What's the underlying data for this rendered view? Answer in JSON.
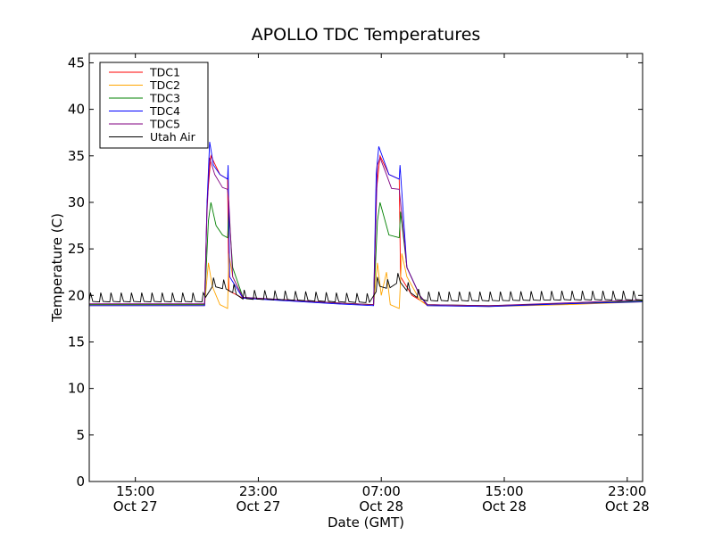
{
  "chart_data": {
    "type": "line",
    "title": "APOLLO TDC Temperatures",
    "xlabel": "Date (GMT)",
    "ylabel": "Temperature (C)",
    "ylim": [
      0,
      46
    ],
    "xlim": [
      "2012-10-27 12:00",
      "2012-10-29 00:00"
    ],
    "grid": false,
    "legend_position": "top-left",
    "x_ticks": [
      {
        "time": "Oct 27 15:00",
        "line1": "15:00",
        "line2": "Oct 27"
      },
      {
        "time": "Oct 27 23:00",
        "line1": "23:00",
        "line2": "Oct 27"
      },
      {
        "time": "Oct 28 07:00",
        "line1": "07:00",
        "line2": "Oct 28"
      },
      {
        "time": "Oct 28 15:00",
        "line1": "15:00",
        "line2": "Oct 28"
      },
      {
        "time": "Oct 28 23:00",
        "line1": "23:00",
        "line2": "Oct 28"
      }
    ],
    "y_ticks": [
      0,
      5,
      10,
      15,
      20,
      25,
      30,
      35,
      40,
      45
    ],
    "series": [
      {
        "name": "TDC1",
        "color": "#ff0000",
        "points": [
          [
            "Oct 27 12:00",
            19.0
          ],
          [
            "Oct 27 19:30",
            19.0
          ],
          [
            "Oct 27 19:40",
            30.0
          ],
          [
            "Oct 27 19:55",
            35.0
          ],
          [
            "Oct 27 20:30",
            33.0
          ],
          [
            "Oct 27 21:00",
            32.5
          ],
          [
            "Oct 27 21:05",
            20.5
          ],
          [
            "Oct 27 22:00",
            19.7
          ],
          [
            "Oct 28 01:00",
            19.5
          ],
          [
            "Oct 28 04:00",
            19.2
          ],
          [
            "Oct 28 06:30",
            19.0
          ],
          [
            "Oct 28 06:40",
            31.0
          ],
          [
            "Oct 28 06:55",
            35.0
          ],
          [
            "Oct 28 07:30",
            33.0
          ],
          [
            "Oct 28 08:10",
            32.5
          ],
          [
            "Oct 28 08:15",
            22.0
          ],
          [
            "Oct 28 09:00",
            20.0
          ],
          [
            "Oct 28 10:00",
            19.0
          ],
          [
            "Oct 28 14:00",
            18.9
          ],
          [
            "Oct 28 19:00",
            19.1
          ],
          [
            "Oct 29 00:00",
            19.4
          ]
        ]
      },
      {
        "name": "TDC2",
        "color": "#ffa500",
        "points": [
          [
            "Oct 27 12:00",
            18.9
          ],
          [
            "Oct 27 19:30",
            18.9
          ],
          [
            "Oct 27 19:45",
            23.5
          ],
          [
            "Oct 27 20:00",
            21.0
          ],
          [
            "Oct 27 20:30",
            19.0
          ],
          [
            "Oct 27 21:00",
            18.6
          ],
          [
            "Oct 27 21:05",
            24.5
          ],
          [
            "Oct 27 21:20",
            22.0
          ],
          [
            "Oct 27 22:00",
            19.7
          ],
          [
            "Oct 28 01:00",
            19.5
          ],
          [
            "Oct 28 04:00",
            19.2
          ],
          [
            "Oct 28 06:30",
            19.0
          ],
          [
            "Oct 28 06:45",
            23.5
          ],
          [
            "Oct 28 07:00",
            20.0
          ],
          [
            "Oct 28 07:20",
            22.5
          ],
          [
            "Oct 28 07:35",
            19.0
          ],
          [
            "Oct 28 08:10",
            18.6
          ],
          [
            "Oct 28 08:20",
            24.5
          ],
          [
            "Oct 28 08:40",
            22.0
          ],
          [
            "Oct 28 09:30",
            19.5
          ],
          [
            "Oct 28 10:00",
            18.9
          ],
          [
            "Oct 28 14:00",
            18.8
          ],
          [
            "Oct 28 19:00",
            19.0
          ],
          [
            "Oct 29 00:00",
            19.3
          ]
        ]
      },
      {
        "name": "TDC3",
        "color": "#008000",
        "points": [
          [
            "Oct 27 12:00",
            19.0
          ],
          [
            "Oct 27 19:30",
            19.0
          ],
          [
            "Oct 27 19:45",
            28.0
          ],
          [
            "Oct 27 19:55",
            30.0
          ],
          [
            "Oct 27 20:15",
            27.5
          ],
          [
            "Oct 27 20:40",
            26.5
          ],
          [
            "Oct 27 21:00",
            26.2
          ],
          [
            "Oct 27 21:05",
            29.0
          ],
          [
            "Oct 27 21:20",
            23.0
          ],
          [
            "Oct 27 22:00",
            19.8
          ],
          [
            "Oct 28 01:00",
            19.5
          ],
          [
            "Oct 28 04:00",
            19.2
          ],
          [
            "Oct 28 06:30",
            19.0
          ],
          [
            "Oct 28 06:45",
            28.0
          ],
          [
            "Oct 28 06:55",
            30.0
          ],
          [
            "Oct 28 07:10",
            28.5
          ],
          [
            "Oct 28 07:30",
            26.5
          ],
          [
            "Oct 28 08:10",
            26.2
          ],
          [
            "Oct 28 08:15",
            29.0
          ],
          [
            "Oct 28 08:40",
            23.0
          ],
          [
            "Oct 28 09:30",
            20.0
          ],
          [
            "Oct 28 10:00",
            19.0
          ],
          [
            "Oct 28 14:00",
            18.9
          ],
          [
            "Oct 28 19:00",
            19.1
          ],
          [
            "Oct 29 00:00",
            19.4
          ]
        ]
      },
      {
        "name": "TDC4",
        "color": "#0000ff",
        "points": [
          [
            "Oct 27 12:00",
            18.9
          ],
          [
            "Oct 27 19:30",
            18.9
          ],
          [
            "Oct 27 19:40",
            30.0
          ],
          [
            "Oct 27 19:50",
            36.5
          ],
          [
            "Oct 27 20:05",
            34.0
          ],
          [
            "Oct 27 20:30",
            33.0
          ],
          [
            "Oct 27 21:00",
            32.5
          ],
          [
            "Oct 27 21:02",
            34.0
          ],
          [
            "Oct 27 21:08",
            22.0
          ],
          [
            "Oct 27 22:00",
            19.7
          ],
          [
            "Oct 28 01:00",
            19.4
          ],
          [
            "Oct 28 04:00",
            19.1
          ],
          [
            "Oct 28 06:30",
            18.9
          ],
          [
            "Oct 28 06:40",
            33.0
          ],
          [
            "Oct 28 06:50",
            36.0
          ],
          [
            "Oct 28 07:10",
            34.5
          ],
          [
            "Oct 28 07:30",
            33.0
          ],
          [
            "Oct 28 08:10",
            32.5
          ],
          [
            "Oct 28 08:13",
            34.0
          ],
          [
            "Oct 28 08:40",
            23.0
          ],
          [
            "Oct 28 09:30",
            20.0
          ],
          [
            "Oct 28 10:00",
            18.9
          ],
          [
            "Oct 28 14:00",
            18.8
          ],
          [
            "Oct 28 19:00",
            19.1
          ],
          [
            "Oct 29 00:00",
            19.3
          ]
        ]
      },
      {
        "name": "TDC5",
        "color": "#800080",
        "points": [
          [
            "Oct 27 12:00",
            19.1
          ],
          [
            "Oct 27 19:30",
            19.1
          ],
          [
            "Oct 27 19:40",
            29.0
          ],
          [
            "Oct 27 19:50",
            34.8
          ],
          [
            "Oct 27 20:10",
            33.0
          ],
          [
            "Oct 27 20:40",
            31.6
          ],
          [
            "Oct 27 21:00",
            31.4
          ],
          [
            "Oct 27 21:05",
            30.0
          ],
          [
            "Oct 27 21:20",
            22.0
          ],
          [
            "Oct 27 22:00",
            19.8
          ],
          [
            "Oct 28 01:00",
            19.5
          ],
          [
            "Oct 28 04:00",
            19.2
          ],
          [
            "Oct 28 06:30",
            19.0
          ],
          [
            "Oct 28 06:45",
            34.0
          ],
          [
            "Oct 28 06:55",
            34.8
          ],
          [
            "Oct 28 07:20",
            33.0
          ],
          [
            "Oct 28 07:40",
            31.5
          ],
          [
            "Oct 28 08:10",
            31.4
          ],
          [
            "Oct 28 08:15",
            30.0
          ],
          [
            "Oct 28 08:40",
            23.0
          ],
          [
            "Oct 28 09:30",
            20.0
          ],
          [
            "Oct 28 10:00",
            19.0
          ],
          [
            "Oct 28 14:00",
            18.9
          ],
          [
            "Oct 28 19:00",
            19.2
          ],
          [
            "Oct 29 00:00",
            19.5
          ]
        ]
      },
      {
        "name": "Utah Air",
        "color": "#000000",
        "baseline": 19.3,
        "spike_height": 1.0,
        "spike_period_minutes": 40,
        "points": [
          [
            "Oct 27 12:00",
            19.3
          ],
          [
            "Oct 27 19:30",
            19.3
          ],
          [
            "Oct 27 19:45",
            21.0
          ],
          [
            "Oct 27 20:30",
            20.8
          ],
          [
            "Oct 27 21:00",
            20.6
          ],
          [
            "Oct 27 21:20",
            20.3
          ],
          [
            "Oct 27 22:00",
            19.6
          ],
          [
            "Oct 28 01:00",
            19.5
          ],
          [
            "Oct 28 04:00",
            19.3
          ],
          [
            "Oct 28 06:30",
            19.2
          ],
          [
            "Oct 28 06:45",
            21.0
          ],
          [
            "Oct 28 07:30",
            20.7
          ],
          [
            "Oct 28 08:10",
            21.5
          ],
          [
            "Oct 28 08:40",
            20.5
          ],
          [
            "Oct 28 09:30",
            19.6
          ],
          [
            "Oct 28 10:00",
            19.4
          ],
          [
            "Oct 28 14:00",
            19.4
          ],
          [
            "Oct 28 19:00",
            19.5
          ],
          [
            "Oct 29 00:00",
            19.5
          ]
        ]
      }
    ]
  }
}
